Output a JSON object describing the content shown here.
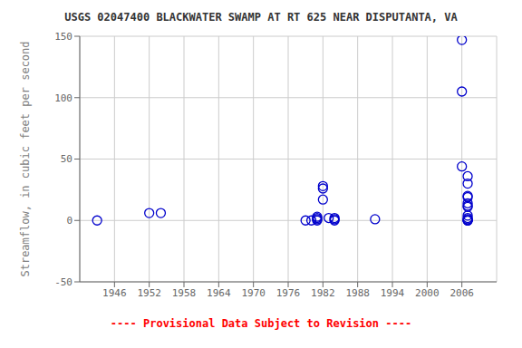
{
  "chart_data": {
    "type": "scatter",
    "title": "USGS 02047400 BLACKWATER SWAMP AT RT 625 NEAR DISPUTANTA, VA",
    "ylabel": "Streamflow, in cubic feet per second",
    "annotations": [
      {
        "text": "---- Provisional Data Subject to Revision ----",
        "color": "red"
      }
    ],
    "x": [
      1943,
      1952,
      1954,
      1979,
      1980,
      1981,
      1981,
      1981,
      1981,
      1982,
      1982,
      1982,
      1983,
      1984,
      1984,
      1984,
      1991,
      2006,
      2006,
      2006,
      2007,
      2007,
      2007,
      2007,
      2007,
      2007,
      2007,
      2007,
      2007,
      2007,
      2007,
      2007,
      2007
    ],
    "values": [
      0,
      6,
      6,
      0,
      0,
      0,
      1,
      2,
      3,
      17,
      26,
      28,
      2,
      0,
      1,
      2,
      1,
      147,
      105,
      44,
      20,
      19,
      36,
      30,
      14,
      12,
      11,
      4,
      2,
      1,
      0,
      0,
      0
    ],
    "color": "#0000CC",
    "marker": "circle",
    "xlim": [
      1940,
      2012
    ],
    "ylim": [
      -50,
      150
    ],
    "xticks": [
      1946,
      1952,
      1958,
      1964,
      1970,
      1976,
      1982,
      1988,
      1994,
      2000,
      2006
    ],
    "yticks": [
      -50,
      0,
      50,
      100,
      150
    ],
    "grid": true
  }
}
